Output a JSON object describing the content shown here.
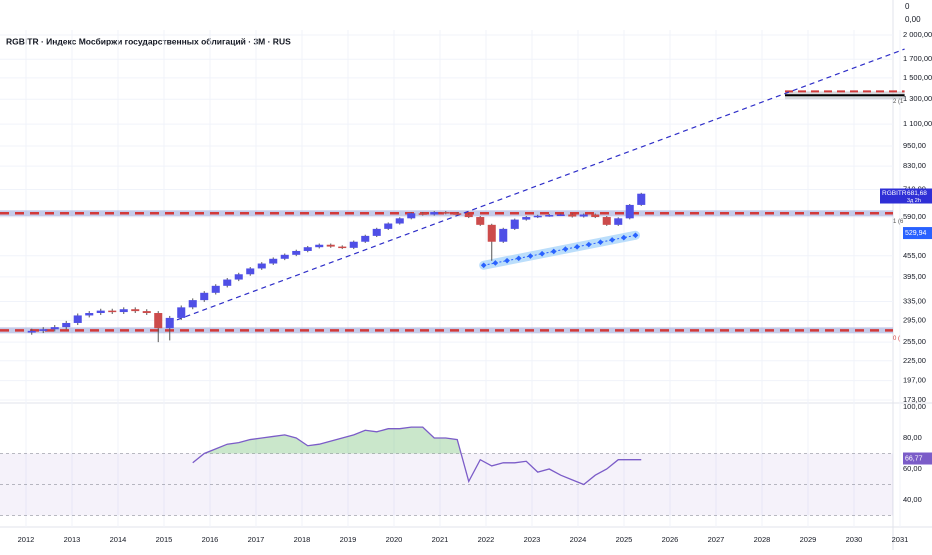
{
  "chart_data": {
    "type": "candlestick",
    "title": "RGBITR · Индекс Мосбиржи государственных облигаций · 3M · RUS",
    "top_labels": [
      "0",
      "0,00"
    ],
    "x": [
      2012,
      2012.25,
      2012.5,
      2012.75,
      2013,
      2013.25,
      2013.5,
      2013.75,
      2014,
      2014.25,
      2014.5,
      2014.75,
      2015,
      2015.25,
      2015.5,
      2015.75,
      2016,
      2016.25,
      2016.5,
      2016.75,
      2017,
      2017.25,
      2017.5,
      2017.75,
      2018,
      2018.25,
      2018.5,
      2018.75,
      2019,
      2019.25,
      2019.5,
      2019.75,
      2020,
      2020.25,
      2020.5,
      2020.75,
      2021,
      2021.25,
      2021.5,
      2021.75,
      2022,
      2022.25,
      2022.5,
      2022.75,
      2023,
      2023.25,
      2023.5,
      2023.75,
      2024,
      2024.25,
      2024.5,
      2024.75,
      2025,
      2025.25
    ],
    "open": [
      272,
      275,
      278,
      282,
      290,
      305,
      310,
      315,
      312,
      318,
      314,
      310,
      280,
      300,
      322,
      338,
      355,
      372,
      388,
      402,
      418,
      432,
      446,
      458,
      470,
      482,
      490,
      484,
      480,
      500,
      520,
      545,
      565,
      585,
      605,
      600,
      610,
      605,
      600,
      590,
      560,
      500,
      545,
      580,
      590,
      595,
      598,
      600,
      592,
      600,
      590,
      560,
      585,
      640
    ],
    "high": [
      279,
      282,
      286,
      294,
      309,
      314,
      319,
      319,
      322,
      322,
      318,
      314,
      304,
      326,
      342,
      359,
      376,
      392,
      406,
      422,
      436,
      450,
      462,
      474,
      486,
      494,
      494,
      488,
      504,
      524,
      549,
      569,
      589,
      609,
      609,
      614,
      614,
      609,
      604,
      594,
      564,
      549,
      584,
      594,
      599,
      602,
      604,
      604,
      604,
      604,
      594,
      589,
      644,
      694
    ],
    "low": [
      268,
      271,
      274,
      278,
      286,
      301,
      306,
      308,
      308,
      310,
      306,
      255,
      258,
      296,
      318,
      334,
      351,
      368,
      384,
      398,
      414,
      428,
      442,
      454,
      466,
      478,
      480,
      476,
      476,
      496,
      516,
      541,
      561,
      581,
      596,
      596,
      601,
      596,
      586,
      556,
      440,
      496,
      541,
      576,
      586,
      591,
      594,
      588,
      588,
      586,
      556,
      556,
      581,
      636
    ],
    "close": [
      275,
      278,
      282,
      290,
      305,
      310,
      315,
      312,
      318,
      314,
      310,
      280,
      300,
      322,
      338,
      355,
      372,
      388,
      402,
      418,
      432,
      446,
      458,
      470,
      482,
      490,
      484,
      480,
      500,
      520,
      545,
      565,
      585,
      605,
      600,
      610,
      605,
      600,
      590,
      560,
      500,
      545,
      580,
      590,
      595,
      598,
      600,
      592,
      600,
      590,
      560,
      585,
      640,
      690
    ],
    "up_color": "#4f4fe6",
    "down_color": "#cc4b4b",
    "log_scale": true,
    "xlim": [
      2011.435,
      2031.5
    ],
    "xticks": [
      2012,
      2013,
      2014,
      2015,
      2016,
      2017,
      2018,
      2019,
      2020,
      2021,
      2022,
      2023,
      2024,
      2025,
      2026,
      2027,
      2028,
      2029,
      2030,
      2031
    ],
    "ylim": [
      166,
      2050
    ],
    "yticks": [
      {
        "value": 2000,
        "label": "2 000,00"
      },
      {
        "value": 1700,
        "label": "1 700,00"
      },
      {
        "value": 1500,
        "label": "1 500,00"
      },
      {
        "value": 1300,
        "label": "1 300,00"
      },
      {
        "value": 1100,
        "label": "1 100,00"
      },
      {
        "value": 950,
        "label": "950,00"
      },
      {
        "value": 830,
        "label": "830,00"
      },
      {
        "value": 710,
        "label": "710,00"
      },
      {
        "value": 590,
        "label": "590,00"
      },
      {
        "value": 455,
        "label": "455,00"
      },
      {
        "value": 395,
        "label": "395,00"
      },
      {
        "value": 335,
        "label": "335,00"
      },
      {
        "value": 295,
        "label": "295,00"
      },
      {
        "value": 255,
        "label": "255,00"
      },
      {
        "value": 225,
        "label": "225,00"
      },
      {
        "value": 197,
        "label": "197,00"
      },
      {
        "value": 173,
        "label": "173,00"
      }
    ],
    "levels": [
      {
        "value": 605,
        "label": "1 (6"
      },
      {
        "value": 276,
        "label": "0 ("
      }
    ],
    "range_box": {
      "x": [
        2028.5,
        2031.1
      ],
      "y": [
        1300,
        1370
      ],
      "label": "2 (1"
    },
    "trend_line": {
      "x": [
        2015.1,
        2031.1
      ],
      "y": [
        290,
        1820
      ]
    },
    "support_line": {
      "x": [
        2021.95,
        2025.25
      ],
      "y": [
        427,
        522
      ]
    },
    "price_tag": {
      "name": "RGBITR",
      "value": 681.68,
      "label": "681,68",
      "sub": "3д 2h"
    },
    "support_tag": {
      "value": 529.94,
      "label": "529,94"
    },
    "rsi": {
      "color": "#7b5cc8",
      "values": [
        null,
        null,
        null,
        null,
        null,
        null,
        null,
        null,
        null,
        null,
        null,
        null,
        null,
        null,
        64,
        70,
        73,
        76,
        77,
        79,
        80,
        81,
        82,
        80,
        75,
        76,
        78,
        80,
        82,
        85,
        84,
        86,
        86,
        87,
        87,
        80,
        80,
        79,
        52,
        66,
        62,
        64,
        64,
        65,
        58,
        60,
        56,
        53,
        50,
        56,
        60,
        66,
        66,
        66
      ],
      "ylim": [
        22,
        102
      ],
      "yticks": [
        {
          "value": 100,
          "label": "100,00"
        },
        {
          "value": 80,
          "label": "80,00"
        },
        {
          "value": 60,
          "label": "60,00"
        },
        {
          "value": 40,
          "label": "40,00"
        }
      ],
      "bands": [
        70,
        50,
        30
      ],
      "tag": {
        "value": 66.77,
        "label": "66,77"
      }
    }
  }
}
